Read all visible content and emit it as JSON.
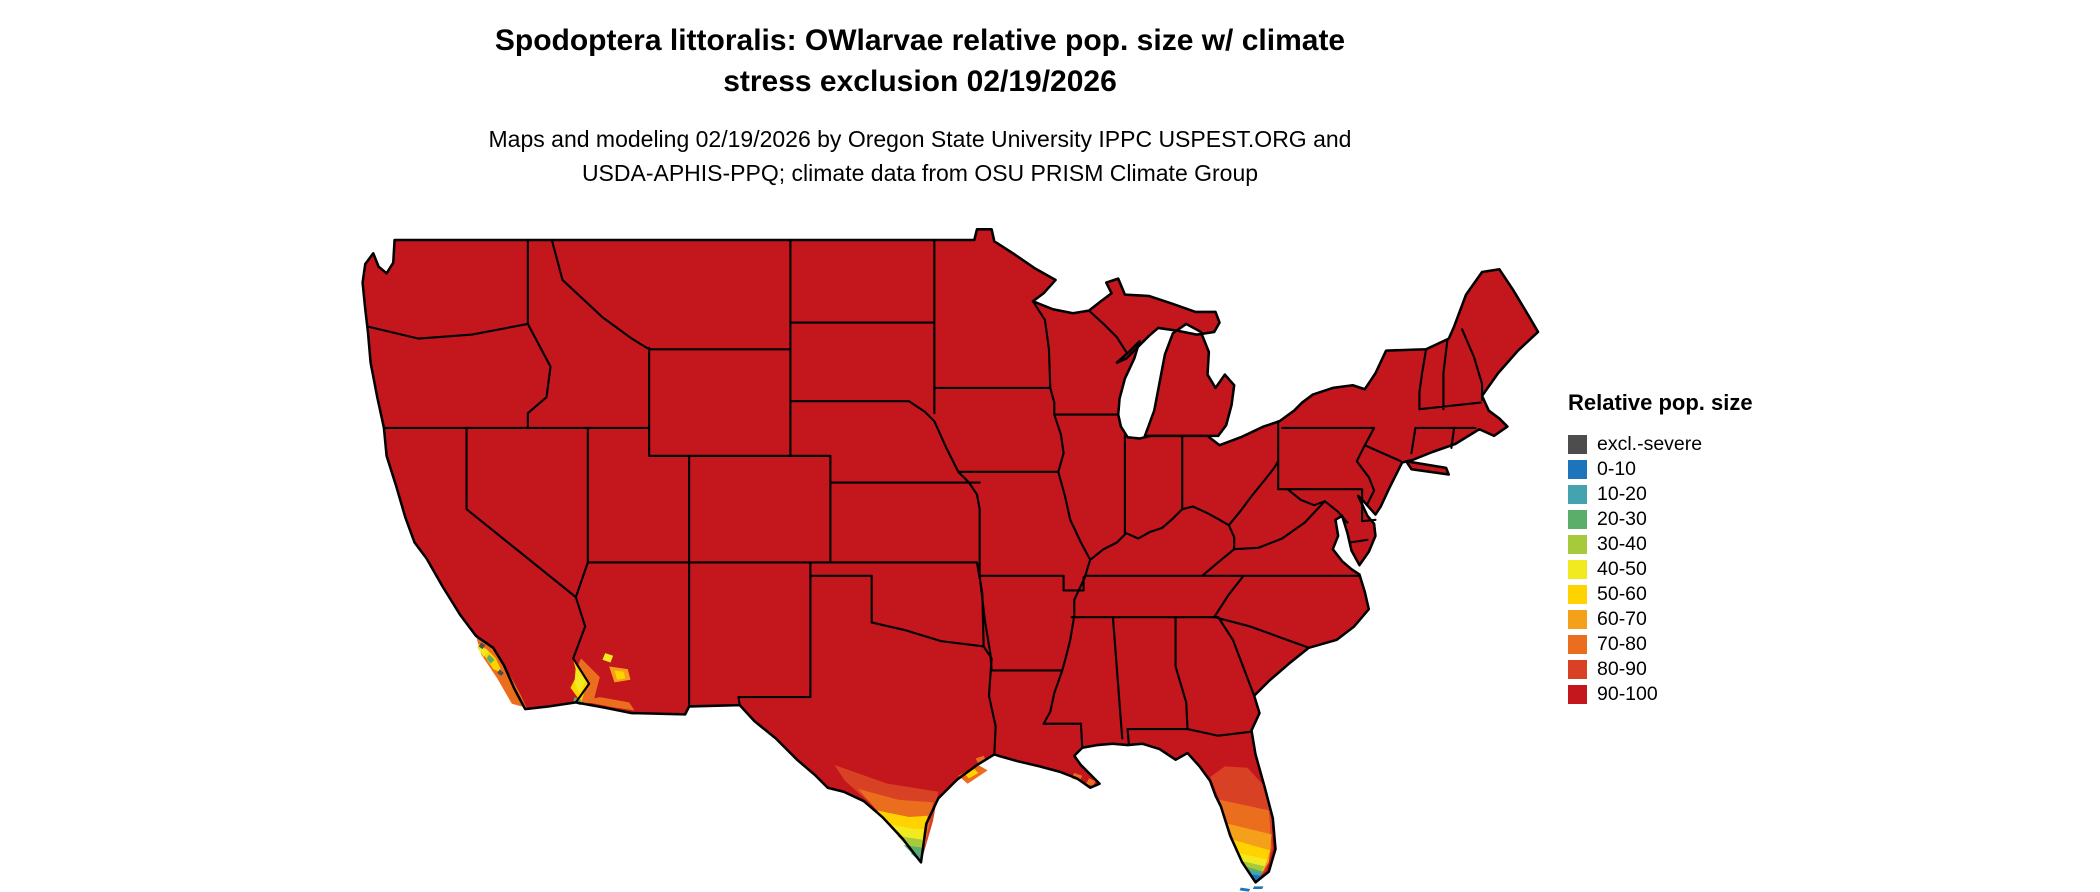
{
  "header": {
    "title_line1": "Spodoptera littoralis: OWlarvae relative pop. size w/ climate",
    "title_line2": "stress exclusion 02/19/2026",
    "subtitle_line1": "Maps and modeling 02/19/2026 by Oregon State University IPPC USPEST.ORG and",
    "subtitle_line2": "USDA-APHIS-PPQ; climate data from OSU PRISM Climate Group"
  },
  "legend": {
    "title": "Relative pop. size",
    "items": [
      {
        "label": "excl.-severe",
        "color": "#4D4D4D"
      },
      {
        "label": "0-10",
        "color": "#1D74BB"
      },
      {
        "label": "10-20",
        "color": "#45A3AF"
      },
      {
        "label": "20-30",
        "color": "#5AAE69"
      },
      {
        "label": "30-40",
        "color": "#A7C93C"
      },
      {
        "label": "40-50",
        "color": "#F2EA21"
      },
      {
        "label": "50-60",
        "color": "#FFD200"
      },
      {
        "label": "60-70",
        "color": "#F5A01B"
      },
      {
        "label": "70-80",
        "color": "#EB6E1E"
      },
      {
        "label": "80-90",
        "color": "#D94124"
      },
      {
        "label": "90-100",
        "color": "#C3161D"
      }
    ]
  },
  "map": {
    "type": "choropleth",
    "region": "Continental United States with state boundaries",
    "dominant_class": "90-100",
    "low_value_areas": [
      "southern Texas (Rio Grande Valley, gradient to 10-20 at the tip)",
      "southern Florida peninsula (gradient to 0-10 at the tip and Keys)",
      "southern California coast (mixed 10-80 and excluded specks)",
      "lower Colorado River valley and southwestern Arizona (40-80)",
      "small 60-80 patches on the upper Texas and Louisiana coast"
    ]
  }
}
